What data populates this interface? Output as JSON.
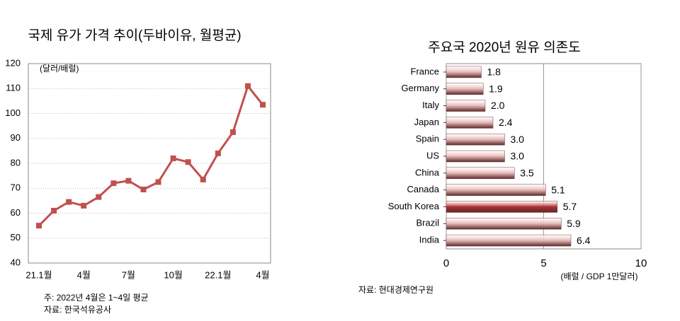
{
  "chart_data": [
    {
      "type": "line",
      "title": "국제 유가 가격 추이(두바이유, 월평균)",
      "unit_label": "(달러/배럴)",
      "categories": [
        "21.1월",
        null,
        null,
        "4월",
        null,
        null,
        "7월",
        null,
        null,
        "10월",
        null,
        null,
        "22.1월",
        null,
        null,
        "4월"
      ],
      "values": [
        55,
        61,
        64.5,
        63,
        66.5,
        72,
        73,
        69.5,
        72.5,
        82,
        80.5,
        73.5,
        84,
        92.5,
        111,
        103.5
      ],
      "color": "#c0504d",
      "ylim": [
        40,
        120
      ],
      "yticks": [
        40,
        50,
        60,
        70,
        80,
        90,
        100,
        110,
        120
      ],
      "grid": true,
      "notes": [
        "주: 2022년 4월은 1~4일 평균",
        "자료: 한국석유공사"
      ]
    },
    {
      "type": "hbar",
      "title": "주요국 2020년 원유 의존도",
      "x_label": "(배럴 / GDP 1만달러)",
      "categories": [
        "France",
        "Germany",
        "Italy",
        "Japan",
        "Spain",
        "US",
        "China",
        "Canada",
        "South Korea",
        "Brazil",
        "India"
      ],
      "values": [
        1.8,
        1.9,
        2.0,
        2.4,
        3.0,
        3.0,
        3.5,
        5.1,
        5.7,
        5.9,
        6.4
      ],
      "value_labels": [
        "1.8",
        "1.9",
        "2.0",
        "2.4",
        "3.0",
        "3.0",
        "3.5",
        "5.1",
        "5.7",
        "5.9",
        "6.4"
      ],
      "colors": [
        "#e6b8b7",
        "#e6b8b7",
        "#e6b8b7",
        "#e6b8b7",
        "#e6b8b7",
        "#e6b8b7",
        "#e6b8b7",
        "#e6b8b7",
        "#b03030",
        "#e6b8b7",
        "#e6b8b7"
      ],
      "xlim": [
        0,
        10
      ],
      "xticks": [
        0,
        5,
        10
      ],
      "grid": true,
      "source": "자료: 현대경제연구원"
    }
  ]
}
